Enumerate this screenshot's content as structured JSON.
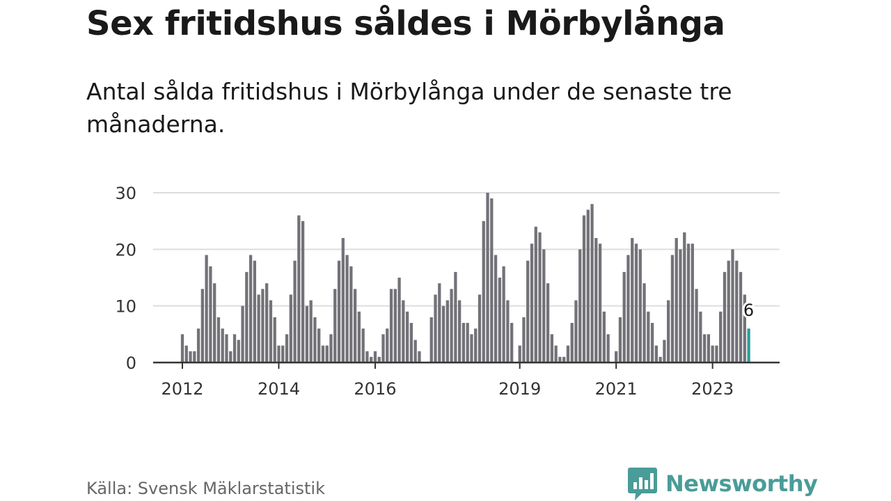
{
  "title": "Sex fritidshus såldes i Mörbylånga",
  "subtitle": "Antal sålda fritidshus i Mörbylånga under de senaste tre månaderna.",
  "source": "Källa: Svensk Mäklarstatistik",
  "brand": "Newsworthy",
  "colors": {
    "bar": "#737278",
    "highlight": "#2a9d9a",
    "grid": "#dddddd",
    "axis": "#333333",
    "brand": "#4a9c98"
  },
  "chart_data": {
    "type": "bar",
    "x_start": "2012-01",
    "x_ticks": [
      "2012",
      "2014",
      "2016",
      "2019",
      "2021",
      "2023"
    ],
    "y_ticks": [
      0,
      10,
      20,
      30
    ],
    "ylim": [
      0,
      30
    ],
    "values": [
      5,
      3,
      2,
      2,
      6,
      13,
      19,
      17,
      14,
      8,
      6,
      5,
      2,
      5,
      4,
      10,
      16,
      19,
      18,
      12,
      13,
      14,
      11,
      8,
      3,
      3,
      5,
      12,
      18,
      26,
      25,
      10,
      11,
      8,
      6,
      3,
      3,
      5,
      13,
      18,
      22,
      19,
      17,
      13,
      9,
      6,
      2,
      1,
      2,
      1,
      5,
      6,
      13,
      13,
      15,
      11,
      9,
      7,
      4,
      2,
      0,
      0,
      8,
      12,
      14,
      10,
      11,
      13,
      16,
      11,
      7,
      7,
      5,
      6,
      12,
      25,
      30,
      29,
      19,
      15,
      17,
      11,
      7,
      0,
      3,
      8,
      18,
      21,
      24,
      23,
      20,
      14,
      5,
      3,
      1,
      1,
      3,
      7,
      11,
      20,
      26,
      27,
      28,
      22,
      21,
      9,
      5,
      0,
      2,
      8,
      16,
      19,
      22,
      21,
      20,
      14,
      9,
      7,
      3,
      1,
      4,
      11,
      19,
      22,
      20,
      23,
      21,
      21,
      13,
      9,
      5,
      5,
      3,
      3,
      9,
      16,
      18,
      20,
      18,
      16,
      12,
      6
    ],
    "highlight_last": true,
    "last_label": "6",
    "grid": true
  }
}
